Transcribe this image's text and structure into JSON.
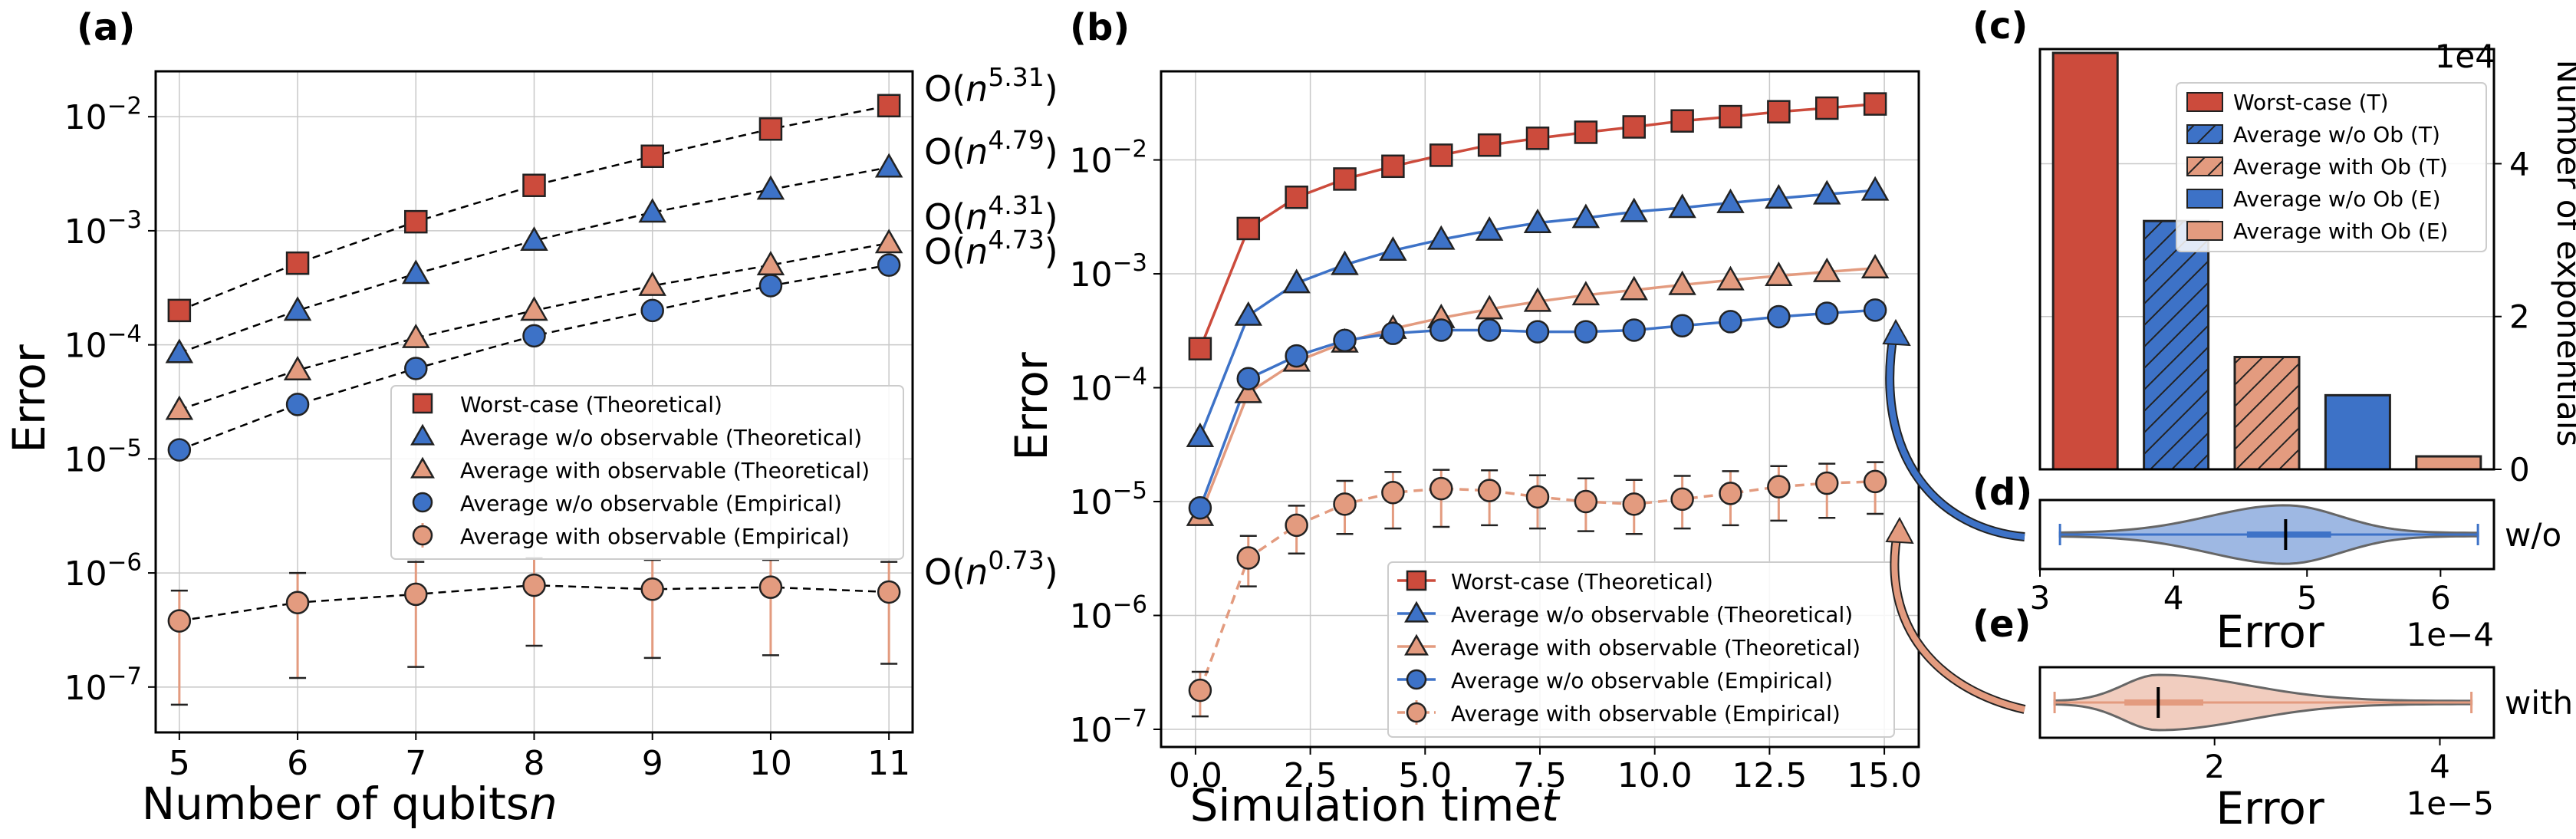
{
  "colors": {
    "worst": "#cc4b3c",
    "avg_wo": "#3d72c7",
    "avg_with": "#e39b7f",
    "dashed": "#000000",
    "grid": "#c8c8c8"
  },
  "panels": {
    "a": {
      "letter": "(a)",
      "xlabel_main": "Number of qubits ",
      "xlabel_italic": "n",
      "ylabel": "Error",
      "xticks": [
        "5",
        "6",
        "7",
        "8",
        "9",
        "10",
        "11"
      ],
      "yticks": [
        {
          "mant": "10",
          "exp": "−7",
          "v": -7
        },
        {
          "mant": "10",
          "exp": "−6",
          "v": -6
        },
        {
          "mant": "10",
          "exp": "−5",
          "v": -5
        },
        {
          "mant": "10",
          "exp": "−4",
          "v": -4
        },
        {
          "mant": "10",
          "exp": "−3",
          "v": -3
        },
        {
          "mant": "10",
          "exp": "−2",
          "v": -2
        }
      ],
      "fit_labels": [
        {
          "pre": "O(",
          "base": "n",
          "exp": "5.31",
          "post": ")"
        },
        {
          "pre": "O(",
          "base": "n",
          "exp": "4.79",
          "post": ")"
        },
        {
          "pre": "O(",
          "base": "n",
          "exp": "4.31",
          "post": ")"
        },
        {
          "pre": "O(",
          "base": "n",
          "exp": "4.73",
          "post": ")"
        },
        {
          "pre": "O(",
          "base": "n",
          "exp": "0.73",
          "post": ")"
        }
      ],
      "legend": [
        "Worst-case (Theoretical)",
        "Average w/o observable (Theoretical)",
        "Average with observable (Theoretical)",
        "Average w/o observable (Empirical)",
        "Average with observable (Empirical)"
      ]
    },
    "b": {
      "letter": "(b)",
      "xlabel_main": "Simulation time ",
      "xlabel_italic": "t",
      "ylabel": "Error",
      "xticks": [
        "0.0",
        "2.5",
        "5.0",
        "7.5",
        "10.0",
        "12.5",
        "15.0"
      ],
      "yticks": [
        {
          "mant": "10",
          "exp": "−7",
          "v": -7
        },
        {
          "mant": "10",
          "exp": "−6",
          "v": -6
        },
        {
          "mant": "10",
          "exp": "−5",
          "v": -5
        },
        {
          "mant": "10",
          "exp": "−4",
          "v": -4
        },
        {
          "mant": "10",
          "exp": "−3",
          "v": -3
        },
        {
          "mant": "10",
          "exp": "−2",
          "v": -2
        }
      ],
      "legend": [
        "Worst-case (Theoretical)",
        "Average w/o observable (Theoretical)",
        "Average with observable (Theoretical)",
        "Average w/o observable (Empirical)",
        "Average with observable (Empirical)"
      ]
    },
    "c": {
      "letter": "(c)",
      "ylabel": "Number of exponentials",
      "yticks": [
        "0",
        "2",
        "4"
      ],
      "offset": "1e4",
      "legend": [
        "Worst-case (T)",
        "Average w/o Ob (T)",
        "Average with Ob (T)",
        "Average w/o Ob (E)",
        "Average with Ob (E)"
      ]
    },
    "d": {
      "letter": "(d)",
      "xlabel": "Error",
      "xticks": [
        "3",
        "4",
        "5",
        "6"
      ],
      "offset": "1e−4",
      "side_label": "w/o"
    },
    "e": {
      "letter": "(e)",
      "xlabel": "Error",
      "xticks": [
        "2",
        "4"
      ],
      "offset": "1e−5",
      "side_label": "with"
    }
  },
  "chart_data": [
    {
      "panel": "a",
      "type": "scatter",
      "title": "",
      "xlabel": "Number of qubits n",
      "ylabel": "Error",
      "yscale": "log",
      "xlim": [
        4.8,
        11.2
      ],
      "ylim": [
        4e-08,
        0.025
      ],
      "grid": true,
      "legend_position": "center-right",
      "x": [
        5,
        6,
        7,
        8,
        9,
        10,
        11
      ],
      "series": [
        {
          "name": "Worst-case (Theoretical)",
          "marker": "square",
          "values": [
            0.0002,
            0.00052,
            0.0012,
            0.0025,
            0.0045,
            0.0078,
            0.0125
          ],
          "fit": "O(n^5.31)"
        },
        {
          "name": "Average w/o observable (Theoretical)",
          "marker": "triangle",
          "values": [
            8.5e-05,
            0.0002,
            0.00042,
            0.00082,
            0.00145,
            0.0023,
            0.0036
          ],
          "fit": "O(n^4.79)"
        },
        {
          "name": "Average with observable (Theoretical)",
          "marker": "triangle",
          "values": [
            2.7e-05,
            6e-05,
            0.000115,
            0.0002,
            0.00033,
            0.0005,
            0.00078
          ],
          "fit": "O(n^4.31)"
        },
        {
          "name": "Average w/o observable (Empirical)",
          "marker": "circle",
          "values": [
            1.2e-05,
            3e-05,
            6.2e-05,
            0.00012,
            0.0002,
            0.00033,
            0.0005
          ],
          "fit": "O(n^4.73)"
        },
        {
          "name": "Average with observable (Empirical)",
          "marker": "circle",
          "values": [
            3.8e-07,
            5.5e-07,
            6.5e-07,
            7.8e-07,
            7.2e-07,
            7.5e-07,
            6.8e-07
          ],
          "err_low": [
            7e-08,
            1.2e-07,
            1.5e-07,
            2.3e-07,
            1.8e-07,
            1.9e-07,
            1.6e-07
          ],
          "err_high": [
            7e-07,
            1e-06,
            1.25e-06,
            1.35e-06,
            1.3e-06,
            1.3e-06,
            1.25e-06
          ],
          "fit": "O(n^0.73)"
        }
      ]
    },
    {
      "panel": "b",
      "type": "line",
      "title": "",
      "xlabel": "Simulation time t",
      "ylabel": "Error",
      "yscale": "log",
      "xlim": [
        -0.75,
        15.75
      ],
      "ylim": [
        7e-08,
        0.06
      ],
      "grid": true,
      "legend_position": "bottom-right",
      "x": [
        0.1,
        1.15,
        2.2,
        3.25,
        4.3,
        5.35,
        6.4,
        7.45,
        8.5,
        9.55,
        10.6,
        11.65,
        12.7,
        13.75,
        14.8
      ],
      "series": [
        {
          "name": "Worst-case (Theoretical)",
          "marker": "square",
          "values": [
            0.00022,
            0.0025,
            0.0047,
            0.0068,
            0.0088,
            0.011,
            0.0135,
            0.0155,
            0.0175,
            0.0195,
            0.022,
            0.024,
            0.0265,
            0.0285,
            0.031
          ]
        },
        {
          "name": "Average w/o observable (Theoretical)",
          "marker": "triangle",
          "values": [
            3.7e-05,
            0.00043,
            0.00083,
            0.0012,
            0.0016,
            0.002,
            0.0024,
            0.0028,
            0.0031,
            0.0035,
            0.0038,
            0.0042,
            0.0046,
            0.005,
            0.0054
          ]
        },
        {
          "name": "Average with observable (Theoretical)",
          "marker": "triangle",
          "values": [
            7.5e-06,
            9e-05,
            0.00017,
            0.00025,
            0.00033,
            0.00041,
            0.00049,
            0.00057,
            0.00065,
            0.00072,
            0.0008,
            0.00088,
            0.00096,
            0.00104,
            0.00112
          ]
        },
        {
          "name": "Average w/o observable (Empirical)",
          "marker": "circle",
          "values": [
            8.8e-06,
            0.00012,
            0.00019,
            0.00026,
            0.0003,
            0.00032,
            0.00032,
            0.00031,
            0.00031,
            0.00032,
            0.00035,
            0.00038,
            0.00042,
            0.00045,
            0.00048
          ]
        },
        {
          "name": "Average with observable (Empirical)",
          "marker": "circle",
          "values": [
            2.2e-07,
            3.2e-06,
            6.2e-06,
            9.5e-06,
            1.2e-05,
            1.3e-05,
            1.25e-05,
            1.1e-05,
            1e-05,
            9.5e-06,
            1.05e-05,
            1.18e-05,
            1.35e-05,
            1.45e-05,
            1.5e-05
          ],
          "err_low": [
            1.3e-07,
            1.8e-06,
            3.5e-06,
            5.2e-06,
            5.8e-06,
            6e-06,
            6.2e-06,
            5.8e-06,
            5.5e-06,
            5.2e-06,
            5.8e-06,
            6.2e-06,
            6.8e-06,
            7.2e-06,
            7.8e-06
          ],
          "err_high": [
            3.2e-07,
            5e-06,
            9.2e-06,
            1.52e-05,
            1.82e-05,
            1.9e-05,
            1.88e-05,
            1.7e-05,
            1.6e-05,
            1.55e-05,
            1.68e-05,
            1.85e-05,
            2.05e-05,
            2.15e-05,
            2.22e-05
          ]
        }
      ]
    },
    {
      "panel": "c",
      "type": "bar",
      "title": "",
      "ylabel": "Number of exponentials",
      "ylim": [
        0,
        55000
      ],
      "grid": true,
      "legend_position": "top-right",
      "categories": [
        "Worst-case (T)",
        "Average w/o Ob (T)",
        "Average with Ob (T)",
        "Average w/o Ob (E)",
        "Average with Ob (E)"
      ],
      "values": [
        54500,
        32500,
        14700,
        9700,
        1700
      ]
    },
    {
      "panel": "d",
      "type": "violin",
      "xlabel": "Error",
      "xlim": [
        0.0003,
        0.00064
      ],
      "min": 0.000315,
      "max": 0.000628,
      "median": 0.000484,
      "q1": 0.000455,
      "q3": 0.000518
    },
    {
      "panel": "e",
      "type": "violin",
      "xlabel": "Error",
      "xlim": [
        4.5e-06,
        4.48e-05
      ],
      "min": 5.8e-06,
      "max": 4.28e-05,
      "median": 1.5e-05,
      "q1": 1.2e-05,
      "q3": 1.9e-05
    }
  ]
}
